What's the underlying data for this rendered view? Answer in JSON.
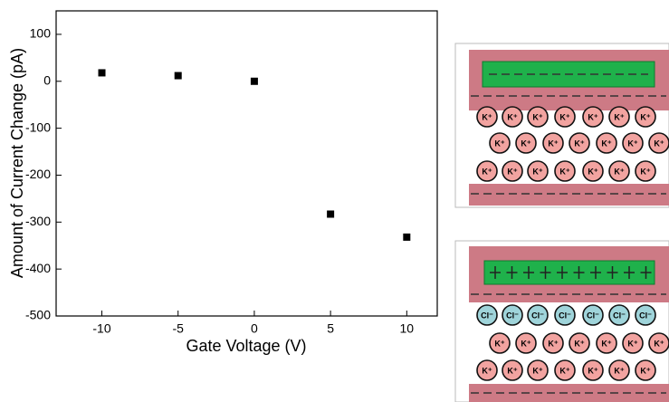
{
  "chart_data": {
    "type": "scatter",
    "xlabel": "Gate Voltage (V)",
    "ylabel": "Amount of Current Change (pA)",
    "x": [
      -10,
      -5,
      0,
      5,
      10
    ],
    "values": [
      18,
      12,
      0,
      -283,
      -332
    ],
    "color": "#000000",
    "xlim": [
      -13,
      12
    ],
    "xticks": [
      -10,
      -5,
      0,
      5,
      10
    ],
    "ylim": [
      -500,
      150
    ],
    "yticks": [
      -500,
      -400,
      -300,
      -200,
      -100,
      0,
      100
    ]
  },
  "diagrams": {
    "potassium_label": "K⁺",
    "chloride_label": "Cl⁻"
  }
}
